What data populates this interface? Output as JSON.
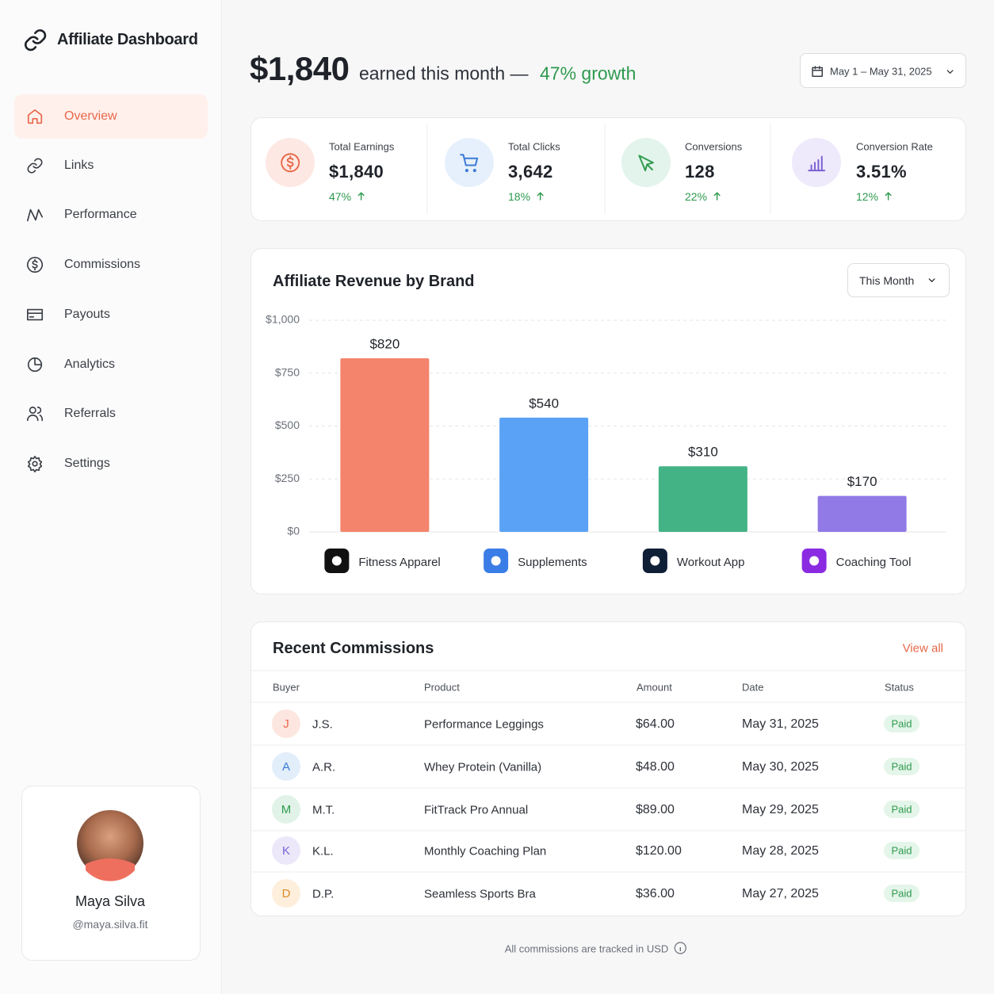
{
  "sidebar": {
    "brand": "Affiliate Dashboard",
    "nav": [
      "Overview",
      "Links",
      "Performance",
      "Commissions",
      "Payouts",
      "Analytics",
      "Referrals",
      "Settings"
    ],
    "profile": {
      "name": "Maya Silva",
      "handle": "@maya.silva.fit"
    }
  },
  "header": {
    "amount": "$1,840",
    "text": "earned this month —",
    "growth": "47% growth",
    "date_range": "May 1 – May 31, 2025"
  },
  "stats": [
    {
      "label": "Total Earnings",
      "value": "$1,840",
      "change": "47%"
    },
    {
      "label": "Total Clicks",
      "value": "3,642",
      "change": "18%"
    },
    {
      "label": "Conversions",
      "value": "128",
      "change": "22%"
    },
    {
      "label": "Conversion Rate",
      "value": "3.51%",
      "change": "12%"
    }
  ],
  "chart_data": {
    "type": "bar",
    "title": "Affiliate Revenue by Brand",
    "period": "This Month",
    "categories": [
      "Fitness Apparel",
      "Supplements",
      "Workout App",
      "Coaching Tool"
    ],
    "values": [
      820,
      540,
      310,
      170
    ],
    "value_labels": [
      "$820",
      "$540",
      "$310",
      "$170"
    ],
    "colors": [
      "#f4846b",
      "#5aa2f5",
      "#43b385",
      "#9179e6"
    ],
    "ylim": [
      0,
      1000
    ],
    "yticks": [
      {
        "value": 0,
        "label": "$0"
      },
      {
        "value": 250,
        "label": "$250"
      },
      {
        "value": 500,
        "label": "$500"
      },
      {
        "value": 750,
        "label": "$750"
      },
      {
        "value": 1000,
        "label": "$1,000"
      }
    ],
    "grid": true
  },
  "commissions": {
    "title": "Recent Commissions",
    "view_all": "View all",
    "columns": [
      "Buyer",
      "Product",
      "Amount",
      "Date",
      "Status"
    ],
    "rows": [
      [
        "J",
        "J.S.",
        "Performance Leggings",
        "$64.00",
        "May 31, 2025",
        "Paid"
      ],
      [
        "A",
        "A.R.",
        "Whey Protein (Vanilla)",
        "$48.00",
        "May 30, 2025",
        "Paid"
      ],
      [
        "M",
        "M.T.",
        "FitTrack Pro Annual",
        "$89.00",
        "May 29, 2025",
        "Paid"
      ],
      [
        "K",
        "K.L.",
        "Monthly Coaching Plan",
        "$120.00",
        "May 28, 2025",
        "Paid"
      ],
      [
        "D",
        "D.P.",
        "Seamless Sports Bra",
        "$36.00",
        "May 27, 2025",
        "Paid"
      ]
    ]
  },
  "footer_note": "All commissions are tracked in USD"
}
